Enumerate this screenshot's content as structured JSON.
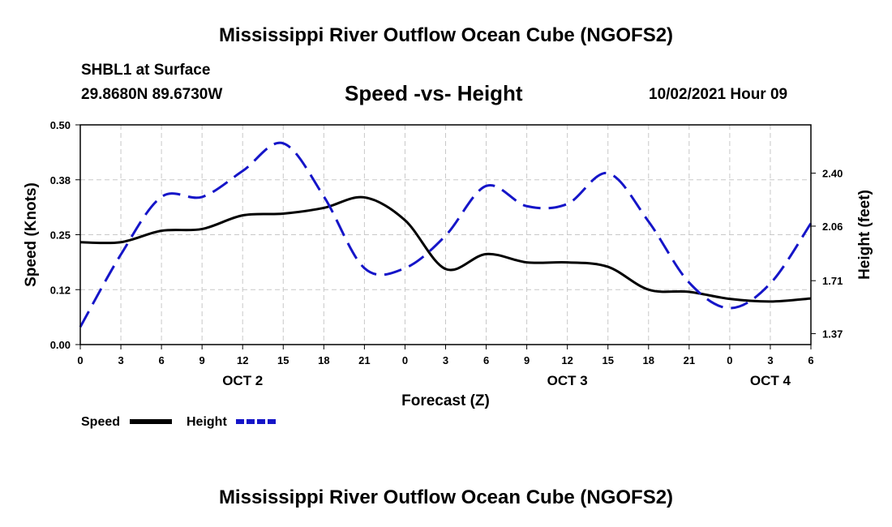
{
  "header": {
    "title": "Mississippi River Outflow Ocean Cube (NGOFS2)",
    "station": "SHBL1 at Surface",
    "coords": "29.8680N  89.6730W",
    "subtitle": "Speed -vs- Height",
    "datetime": "10/02/2021 Hour 09"
  },
  "footer": {
    "title": "Mississippi River Outflow Ocean Cube (NGOFS2)"
  },
  "colors": {
    "speed": "#000000",
    "height": "#1515c8",
    "grid": "#c8c8c8"
  },
  "chart_data": {
    "type": "line",
    "title": "Speed -vs- Height",
    "xlabel": "Forecast (Z)",
    "ylabel": "Speed (Knots)",
    "y2label": "Height (feet)",
    "x": [
      0,
      3,
      6,
      9,
      12,
      15,
      18,
      21,
      24,
      27,
      30,
      33,
      36,
      39,
      42,
      45,
      48,
      51,
      54
    ],
    "xlim": [
      0,
      54
    ],
    "x_tick_labels": [
      "0",
      "3",
      "6",
      "9",
      "12",
      "15",
      "18",
      "21",
      "0",
      "3",
      "6",
      "9",
      "12",
      "15",
      "18",
      "21",
      "0",
      "3",
      "6"
    ],
    "date_labels": [
      {
        "x": 12,
        "label": "OCT 2"
      },
      {
        "x": 36,
        "label": "OCT 3"
      },
      {
        "x": 51,
        "label": "OCT 4"
      }
    ],
    "ylim": [
      0,
      0.5
    ],
    "y_ticks": [
      0,
      0.125,
      0.25,
      0.375,
      0.5
    ],
    "y_tick_labels": [
      "0.00",
      "0.12",
      "0.25",
      "0.38",
      "0.50"
    ],
    "y2lim": [
      1.3,
      2.71
    ],
    "y2_ticks": [
      1.37,
      1.71,
      2.06,
      2.4
    ],
    "y2_tick_labels": [
      "1.37",
      "1.71",
      "2.06",
      "2.40"
    ],
    "grid": true,
    "legend_position": "bottom-left",
    "series": [
      {
        "name": "Speed",
        "axis": "left",
        "style": "solid",
        "values": [
          0.233,
          0.233,
          0.259,
          0.263,
          0.294,
          0.298,
          0.311,
          0.335,
          0.283,
          0.172,
          0.206,
          0.187,
          0.187,
          0.177,
          0.125,
          0.12,
          0.104,
          0.098,
          0.105
        ]
      },
      {
        "name": "Height",
        "axis": "left",
        "style": "dashed",
        "values": [
          0.04,
          0.205,
          0.336,
          0.336,
          0.395,
          0.458,
          0.337,
          0.174,
          0.174,
          0.248,
          0.361,
          0.315,
          0.32,
          0.39,
          0.28,
          0.141,
          0.083,
          0.139,
          0.276
        ]
      }
    ]
  }
}
